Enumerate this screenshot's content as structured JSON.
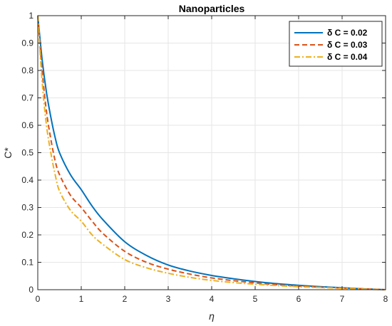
{
  "chart_data": {
    "type": "line",
    "title": "Nanoparticles",
    "xlabel": "η",
    "ylabel": "C*",
    "xlim": [
      0,
      8
    ],
    "ylim": [
      0,
      1
    ],
    "xticks": [
      0,
      1,
      2,
      3,
      4,
      5,
      6,
      7,
      8
    ],
    "yticks": [
      0,
      0.1,
      0.2,
      0.3,
      0.4,
      0.5,
      0.6,
      0.7,
      0.8,
      0.9,
      1
    ],
    "grid": true,
    "legend_position": "top-right",
    "x": [
      0,
      0.1,
      0.2,
      0.3,
      0.4,
      0.5,
      0.75,
      1,
      1.25,
      1.5,
      2,
      2.5,
      3,
      3.5,
      4,
      4.5,
      5,
      5.5,
      6,
      6.5,
      7,
      7.5,
      8
    ],
    "series": [
      {
        "name": "δ C = 0.02",
        "color": "#0072bd",
        "style": "solid",
        "values": [
          1.0,
          0.84,
          0.72,
          0.63,
          0.555,
          0.5,
          0.42,
          0.365,
          0.305,
          0.255,
          0.175,
          0.125,
          0.09,
          0.068,
          0.052,
          0.04,
          0.03,
          0.022,
          0.016,
          0.011,
          0.007,
          0.003,
          0.0
        ]
      },
      {
        "name": "δ C = 0.03",
        "color": "#d95319",
        "style": "dashed",
        "values": [
          1.0,
          0.8,
          0.65,
          0.55,
          0.47,
          0.42,
          0.345,
          0.3,
          0.25,
          0.205,
          0.14,
          0.1,
          0.075,
          0.057,
          0.043,
          0.033,
          0.025,
          0.018,
          0.013,
          0.009,
          0.006,
          0.003,
          0.0
        ]
      },
      {
        "name": "δ C = 0.04",
        "color": "#edb120",
        "style": "dashdot",
        "values": [
          1.0,
          0.76,
          0.6,
          0.5,
          0.42,
          0.36,
          0.29,
          0.25,
          0.2,
          0.165,
          0.11,
          0.08,
          0.06,
          0.045,
          0.034,
          0.026,
          0.02,
          0.015,
          0.011,
          0.008,
          0.005,
          0.002,
          0.0
        ]
      }
    ]
  }
}
